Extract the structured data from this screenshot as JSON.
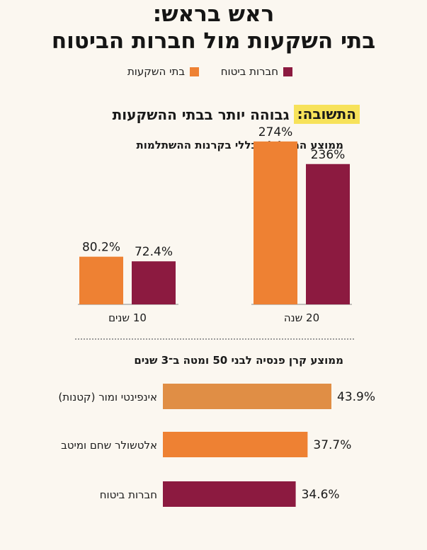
{
  "title": [
    "ראש בראש:",
    "בתי השקעות מול חברות הביטוח"
  ],
  "legend": [
    {
      "label": "חברות ביטוח",
      "color": "#8c1a40"
    },
    {
      "label": "בתי השקעות",
      "color": "#ee8133"
    }
  ],
  "answer": {
    "label": "התשובה:",
    "text": "גבוהה יותר בבתי ההשקעות",
    "highlight": "#f7e25a"
  },
  "colors": {
    "orange": "#ee8133",
    "burgundy": "#8c1a40",
    "light_orange": "#e08e45"
  },
  "chart_data": [
    {
      "type": "bar",
      "title": "ממוצע המסלול הכללי בקרנות ההשתלמות",
      "categories": [
        "20 שנה",
        "10 שנים"
      ],
      "series": [
        {
          "name": "בתי השקעות",
          "values": [
            274,
            80.2
          ],
          "labels": [
            "274%",
            "80.2%"
          ],
          "color": "#ee8133"
        },
        {
          "name": "חברות ביטוח",
          "values": [
            236,
            72.4
          ],
          "labels": [
            "236%",
            "72.4%"
          ],
          "color": "#8c1a40"
        }
      ],
      "ylim": [
        0,
        300
      ]
    },
    {
      "type": "bar",
      "orientation": "horizontal",
      "title": "ממוצע קרן פנסיה לבני 50 ומטה ב־3 שנים",
      "categories": [
        "אינפינטי ומור (קטנות)",
        "אלטשולר שחם ומיטב",
        "חברות ביטוח"
      ],
      "values": [
        43.9,
        37.7,
        34.6
      ],
      "labels": [
        "43.9%",
        "37.7%",
        "34.6%"
      ],
      "colors": [
        "#e08e45",
        "#ee8133",
        "#8c1a40"
      ],
      "xlim": [
        0,
        45
      ]
    }
  ]
}
